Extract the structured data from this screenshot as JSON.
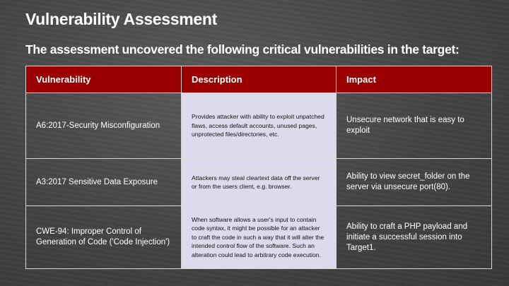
{
  "title": "Vulnerability Assessment",
  "subtitle": "The assessment uncovered the following critical vulnerabilities in the target:",
  "table": {
    "headers": [
      "Vulnerability",
      "Description",
      "Impact"
    ],
    "rows": [
      {
        "vulnerability": "A6:2017-Security Misconfiguration",
        "description": "Provides attacker with ability to exploit unpatched flaws, access default accounts, unused pages, unprotected files/directories, etc.",
        "impact": "Unsecure network that is easy to exploit"
      },
      {
        "vulnerability": "A3:2017 Sensitive Data Exposure",
        "description": "Attackers may steal cleartext data off the server or from the users client, e.g. browser.",
        "impact": "Ability to view secret_folder on the server via unsecure port(80)."
      },
      {
        "vulnerability": "CWE-94: Improper Control of Generation of Code ('Code Injection')",
        "description": "When software allows a user's input to contain code syntax, it might be possible for an attacker to craft the code in such a way that it will alter the intended control flow of the software. Such an alteration could lead to arbitrary code execution.",
        "impact": "Ability to craft a PHP payload and initiate a successful session into Target1."
      }
    ]
  },
  "colors": {
    "header_bg": "#9b0000",
    "description_bg": "#dcdbec",
    "background": "#4a4a4a"
  }
}
